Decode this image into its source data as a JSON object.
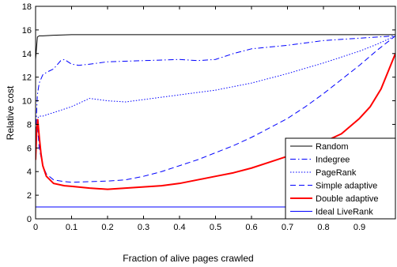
{
  "chart_data": {
    "type": "line",
    "xlabel": "Fraction of alive pages crawled",
    "ylabel": "Relative cost",
    "xlim": [
      0,
      1
    ],
    "ylim": [
      0,
      18
    ],
    "x_ticks": [
      0,
      0.1,
      0.2,
      0.3,
      0.4,
      0.5,
      0.6,
      0.7,
      0.8,
      0.9
    ],
    "x_tick_labels": [
      "0",
      "0.1",
      "0.2",
      "0.3",
      "0.4",
      "0.5",
      "0.6",
      "0.7",
      "0.8",
      "0.9"
    ],
    "y_ticks": [
      0,
      2,
      4,
      6,
      8,
      10,
      12,
      14,
      16,
      18
    ],
    "y_tick_labels": [
      "0",
      "2",
      "4",
      "6",
      "8",
      "10",
      "12",
      "14",
      "16",
      "18"
    ],
    "grid": false,
    "legend_position": "bottom-right",
    "series": [
      {
        "name": "Random",
        "color": "#000000",
        "style": "solid",
        "x": [
          0.0,
          0.005,
          0.01,
          0.02,
          0.05,
          0.1,
          0.2,
          0.3,
          0.4,
          0.5,
          0.6,
          0.7,
          0.8,
          0.9,
          0.95,
          1.0
        ],
        "y": [
          13.5,
          15.4,
          15.5,
          15.5,
          15.55,
          15.6,
          15.6,
          15.6,
          15.6,
          15.6,
          15.6,
          15.6,
          15.6,
          15.6,
          15.6,
          15.6
        ]
      },
      {
        "name": "Indegree",
        "color": "#0000ff",
        "style": "dashdot",
        "x": [
          0.0,
          0.005,
          0.01,
          0.02,
          0.03,
          0.05,
          0.07,
          0.08,
          0.1,
          0.12,
          0.15,
          0.2,
          0.3,
          0.4,
          0.45,
          0.5,
          0.55,
          0.6,
          0.7,
          0.8,
          0.9,
          0.95,
          1.0
        ],
        "y": [
          7.0,
          10.5,
          11.5,
          12.2,
          12.4,
          12.7,
          13.4,
          13.5,
          13.1,
          13.0,
          13.1,
          13.3,
          13.4,
          13.5,
          13.4,
          13.5,
          14.0,
          14.4,
          14.7,
          15.1,
          15.3,
          15.4,
          15.5
        ]
      },
      {
        "name": "PageRank",
        "color": "#0000ff",
        "style": "dotted",
        "x": [
          0.0,
          0.005,
          0.01,
          0.02,
          0.05,
          0.1,
          0.15,
          0.2,
          0.25,
          0.3,
          0.4,
          0.5,
          0.6,
          0.7,
          0.8,
          0.9,
          0.95,
          1.0
        ],
        "y": [
          6.0,
          8.5,
          8.7,
          8.7,
          9.0,
          9.5,
          10.2,
          10.0,
          9.9,
          10.1,
          10.5,
          10.9,
          11.5,
          12.3,
          13.2,
          14.2,
          14.8,
          15.5
        ]
      },
      {
        "name": "Simple adaptive",
        "color": "#0000ff",
        "style": "dashed",
        "x": [
          0.0,
          0.005,
          0.01,
          0.02,
          0.03,
          0.05,
          0.08,
          0.1,
          0.15,
          0.2,
          0.25,
          0.3,
          0.35,
          0.4,
          0.45,
          0.5,
          0.55,
          0.6,
          0.65,
          0.7,
          0.75,
          0.8,
          0.85,
          0.9,
          0.95,
          1.0
        ],
        "y": [
          7.5,
          8.0,
          6.0,
          4.5,
          3.8,
          3.3,
          3.15,
          3.1,
          3.15,
          3.2,
          3.3,
          3.6,
          4.0,
          4.5,
          5.0,
          5.6,
          6.2,
          6.9,
          7.7,
          8.5,
          9.5,
          10.6,
          11.8,
          13.0,
          14.3,
          15.5
        ]
      },
      {
        "name": "Double adaptive",
        "color": "#ff0000",
        "style": "solid-thick",
        "x": [
          0.0,
          0.003,
          0.006,
          0.01,
          0.015,
          0.02,
          0.03,
          0.05,
          0.08,
          0.1,
          0.15,
          0.2,
          0.25,
          0.3,
          0.35,
          0.4,
          0.45,
          0.5,
          0.55,
          0.6,
          0.65,
          0.7,
          0.75,
          0.8,
          0.85,
          0.9,
          0.93,
          0.96,
          0.98,
          1.0
        ],
        "y": [
          5.0,
          7.5,
          8.4,
          7.0,
          5.5,
          4.5,
          3.6,
          3.0,
          2.8,
          2.75,
          2.6,
          2.5,
          2.6,
          2.7,
          2.8,
          3.0,
          3.3,
          3.6,
          3.9,
          4.3,
          4.8,
          5.3,
          5.9,
          6.5,
          7.2,
          8.5,
          9.5,
          11.0,
          12.5,
          14.0
        ]
      },
      {
        "name": "Ideal LiveRank",
        "color": "#0000ff",
        "style": "solid",
        "x": [
          0.0,
          1.0
        ],
        "y": [
          1.0,
          1.0
        ]
      }
    ]
  }
}
